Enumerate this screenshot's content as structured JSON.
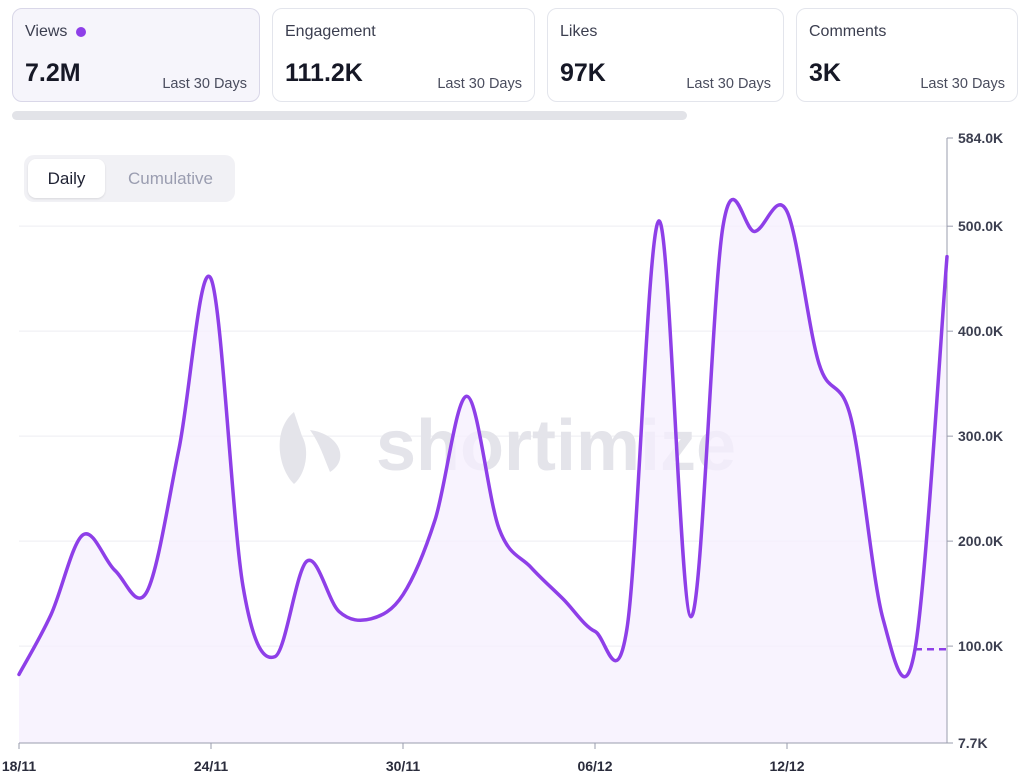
{
  "cards": [
    {
      "label": "Views",
      "value": "7.2M",
      "period": "Last 30 Days"
    },
    {
      "label": "Engagement",
      "value": "111.2K",
      "period": "Last 30 Days"
    },
    {
      "label": "Likes",
      "value": "97K",
      "period": "Last 30 Days"
    },
    {
      "label": "Comments",
      "value": "3K",
      "period": "Last 30 Days"
    }
  ],
  "toggle": {
    "daily": "Daily",
    "cumulative": "Cumulative",
    "selected": "Daily"
  },
  "watermark": "shortimize",
  "colors": {
    "line": "#8e3fe8",
    "fill": "#f5effd",
    "grid": "#eeeef2"
  },
  "chart_data": {
    "type": "line",
    "series": [
      {
        "values": [
          73000,
          130000,
          206000,
          172000,
          152000,
          288000,
          450000,
          157000,
          90000,
          181000,
          133000,
          126000,
          149000,
          220000,
          338000,
          212000,
          175000,
          145000,
          114000,
          117000,
          505000,
          128000,
          500000,
          495000,
          514000,
          369000,
          317000,
          126000,
          97000,
          471000
        ],
        "forecast": {
          "from": 97000,
          "to": 97000
        }
      }
    ],
    "x_ticks": [
      "18/11",
      "24/11",
      "30/11",
      "06/12",
      "12/12"
    ],
    "y_ticks": [
      "584.0K",
      "500.0K",
      "400.0K",
      "300.0K",
      "200.0K",
      "100.0K",
      "7.7K"
    ],
    "y_tick_values": [
      584000,
      500000,
      400000,
      300000,
      200000,
      100000,
      7700
    ],
    "ylim": [
      7700,
      584000
    ],
    "grid": true
  }
}
